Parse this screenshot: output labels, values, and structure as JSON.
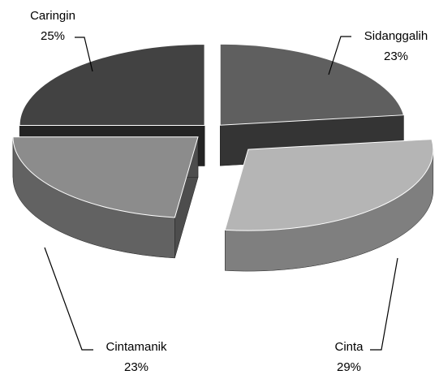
{
  "chart_data": {
    "type": "pie3d",
    "categories": [
      "Sidanggalih",
      "Cinta",
      "Cintamanik",
      "Caringin"
    ],
    "values": [
      23,
      29,
      23,
      25
    ],
    "value_labels": [
      "23%",
      "29%",
      "23%",
      "25%"
    ],
    "colors": [
      "#5f5f5f",
      "#b5b5b5",
      "#8c8c8c",
      "#424242"
    ]
  }
}
